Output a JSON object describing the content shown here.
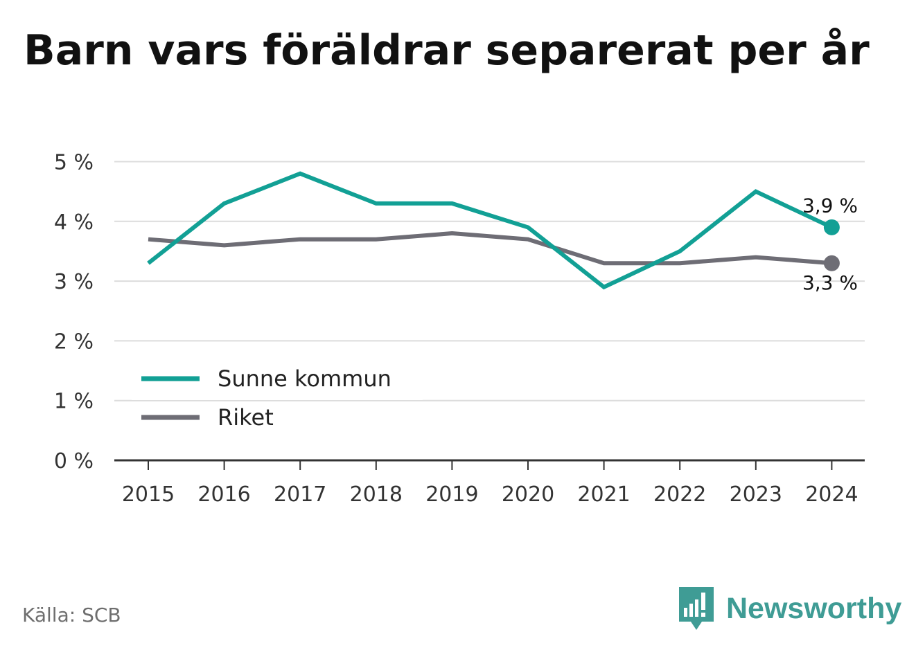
{
  "title": "Barn vars föräldrar separerat per år",
  "source": "Källa: SCB",
  "brand": {
    "name": "Newsworthy",
    "icon": "newsworthy-logo-icon",
    "color": "#3f9c95"
  },
  "chart_data": {
    "type": "line",
    "title": "Barn vars föräldrar separerat per år",
    "x": [
      "2015",
      "2016",
      "2017",
      "2018",
      "2019",
      "2020",
      "2021",
      "2022",
      "2023",
      "2024"
    ],
    "series": [
      {
        "name": "Sunne kommun",
        "color": "#12a095",
        "values": [
          3.3,
          4.3,
          4.8,
          4.3,
          4.3,
          3.9,
          2.9,
          3.5,
          4.5,
          3.9
        ],
        "end_label": "3,9 %"
      },
      {
        "name": "Riket",
        "color": "#6e6d75",
        "values": [
          3.7,
          3.6,
          3.7,
          3.7,
          3.8,
          3.7,
          3.3,
          3.3,
          3.4,
          3.3
        ],
        "end_label": "3,3 %"
      }
    ],
    "ylim": [
      0,
      5
    ],
    "yticks": [
      0,
      1,
      2,
      3,
      4,
      5
    ],
    "ytick_labels": [
      "0 %",
      "1 %",
      "2 %",
      "3 %",
      "4 %",
      "5 %"
    ],
    "grid": true,
    "legend_position": "bottom-left"
  }
}
